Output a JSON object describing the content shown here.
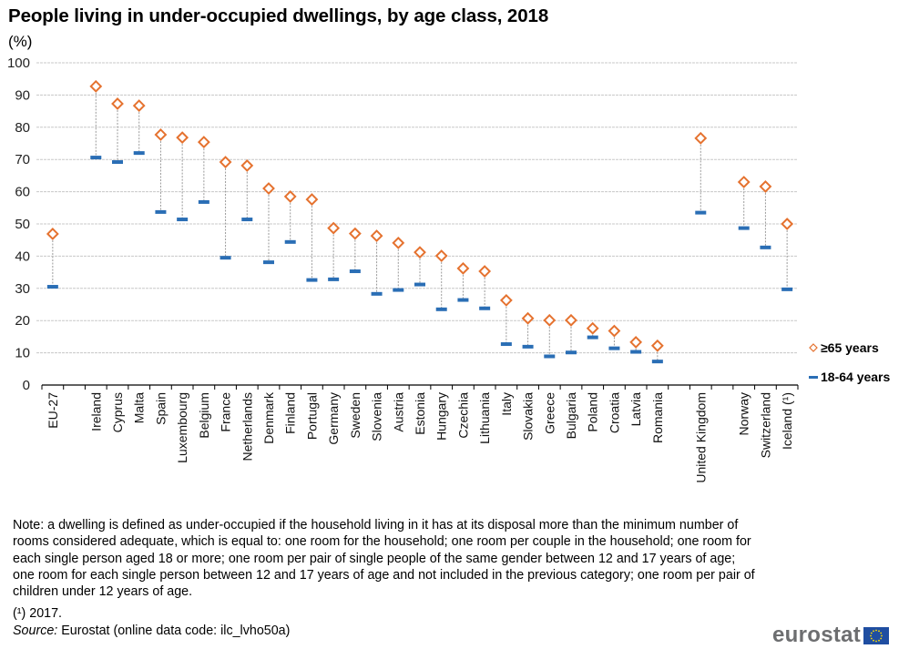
{
  "header": {
    "title": "People living in under-occupied dwellings, by age class, 2018",
    "unit": "(%)"
  },
  "legend": {
    "items": [
      {
        "label": "≥65 years",
        "marker": "diamond-outline",
        "color": "#E5722F"
      },
      {
        "label": "18-64 years",
        "marker": "dash",
        "color": "#2A6EB5"
      }
    ]
  },
  "colors": {
    "senior": "#E5722F",
    "adult": "#2A6EB5",
    "grid": "#c8c8c8",
    "dropline": "#9a9a9a",
    "logo_text": "#6d6e70",
    "flag": "#1f4ea1",
    "flag_stars": "#ffdd00"
  },
  "chart_data": {
    "type": "scatter",
    "title": "People living in under-occupied dwellings, by age class, 2018",
    "xlabel": "",
    "ylabel": "(%)",
    "ylim": [
      0,
      100
    ],
    "yticks": [
      0,
      10,
      20,
      30,
      40,
      50,
      60,
      70,
      80,
      90,
      100
    ],
    "grid": true,
    "legend_position": "bottom-right",
    "categories": [
      "EU-27",
      "",
      "Ireland",
      "Cyprus",
      "Malta",
      "Spain",
      "Luxembourg",
      "Belgium",
      "France",
      "Netherlands",
      "Denmark",
      "Finland",
      "Portugal",
      "Germany",
      "Sweden",
      "Slovenia",
      "Austria",
      "Estonia",
      "Hungary",
      "Czechia",
      "Lithuania",
      "Italy",
      "Slovakia",
      "Greece",
      "Bulgaria",
      "Poland",
      "Croatia",
      "Latvia",
      "Romania",
      "",
      "United Kingdom",
      "",
      "Norway",
      "Switzerland",
      "Iceland (¹)"
    ],
    "series": [
      {
        "name": "≥65 years",
        "marker": "diamond-outline",
        "values": [
          46.9,
          null,
          92.7,
          87.3,
          86.7,
          77.7,
          76.8,
          75.4,
          69.2,
          68.1,
          61.0,
          58.5,
          57.6,
          48.7,
          47.0,
          46.3,
          44.1,
          41.2,
          40.1,
          36.2,
          35.3,
          26.3,
          20.7,
          20.1,
          20.1,
          17.6,
          16.8,
          13.3,
          12.2,
          null,
          76.6,
          null,
          63.0,
          61.6,
          50.0
        ]
      },
      {
        "name": "18-64 years",
        "marker": "dash",
        "values": [
          30.5,
          null,
          70.6,
          69.2,
          72.0,
          53.7,
          51.4,
          56.8,
          39.5,
          51.4,
          38.1,
          44.4,
          32.6,
          32.8,
          35.3,
          28.3,
          29.5,
          31.2,
          23.5,
          26.4,
          23.8,
          12.7,
          11.9,
          8.9,
          10.1,
          14.8,
          11.4,
          10.3,
          7.3,
          null,
          53.5,
          null,
          48.7,
          42.7,
          29.7
        ]
      }
    ]
  },
  "footer": {
    "note": "Note: a dwelling is defined as under-occupied if the household living in it has at its disposal more than the minimum number of rooms considered adequate, which is equal to: one room for the household; one room per couple in the household; one room for each single person aged 18 or more; one room per pair of single people of the same gender between 12 and 17 years of age; one room for each single person between 12 and 17 years of age and not included in the previous category; one room per pair of children under 12 years of age.",
    "footnote": "(¹) 2017.",
    "source_label": "Source:",
    "source_text": " Eurostat (online data code: ilc_lvho50a)",
    "logo": "eurostat"
  }
}
